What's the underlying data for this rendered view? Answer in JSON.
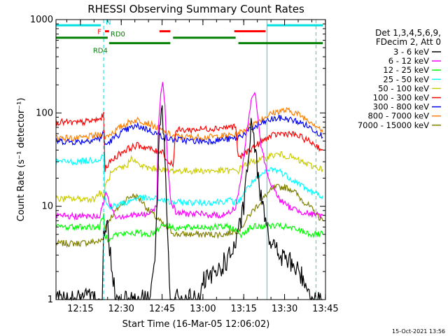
{
  "chart_data": {
    "type": "line",
    "title": "RHESSI Observing Summary Count Rates",
    "xlabel": "Start Time (16-Mar-05 12:06:02)",
    "ylabel": "Count Rate (s⁻¹ detector⁻¹)",
    "y_scale": "log",
    "ylim": [
      1,
      1000
    ],
    "xlim_minutes_after_start": [
      0,
      99
    ],
    "x_tick_labels": [
      "12:15",
      "12:30",
      "12:45",
      "13:00",
      "13:15",
      "13:30",
      "13:45"
    ],
    "x_tick_minutes": [
      8.97,
      23.97,
      38.97,
      53.97,
      68.97,
      83.97,
      98.97
    ],
    "y_tick_labels": [
      "1",
      "10",
      "100",
      "1000"
    ],
    "y_tick_values": [
      1,
      10,
      100,
      1000
    ],
    "grid": false,
    "legend_placement": "right",
    "legend_header": [
      "Det 1,3,4,5,6,9,",
      "FDecim 2, Att 0"
    ],
    "footer_timestamp": "15-Oct-2021 13:56",
    "vertical_markers_minutes": [
      {
        "x": 17.5,
        "color": "#00e0e0",
        "style": "dashed"
      },
      {
        "x": 77.5,
        "color": "#00e0e0",
        "style": "solid"
      },
      {
        "x": 95.5,
        "color": "#00e0e0",
        "style": "dashed"
      }
    ],
    "flag_bars": [
      {
        "label": "N",
        "label_color": "#00e0e0",
        "level": 870,
        "color": "#00e0e0",
        "segments": [
          [
            0,
            16.5
          ],
          [
            77.5,
            98
          ]
        ]
      },
      {
        "label": "F",
        "label_color": "#ff0000",
        "level": 750,
        "color": "#ff0000",
        "segments": [
          [
            18,
            19.5
          ],
          [
            38,
            42
          ],
          [
            65.5,
            77
          ]
        ]
      },
      {
        "label": "RD0",
        "label_color": "#008000",
        "level": 640,
        "color": "#008000",
        "segments": [
          [
            0,
            19
          ],
          [
            43,
            66
          ]
        ]
      },
      {
        "label": "RD4",
        "label_color": "#008000",
        "level": 560,
        "color": "#008000",
        "segments": [
          [
            19.5,
            42
          ],
          [
            67,
            98
          ]
        ]
      }
    ],
    "series": [
      {
        "name": "3 - 6 keV",
        "color": "#000000",
        "values": [
          [
            0,
            1
          ],
          [
            17,
            1
          ],
          [
            17.5,
            5
          ],
          [
            19,
            6
          ],
          [
            20,
            3
          ],
          [
            22,
            1
          ],
          [
            34,
            1
          ],
          [
            36,
            2
          ],
          [
            37,
            8
          ],
          [
            38,
            60
          ],
          [
            39,
            100
          ],
          [
            40,
            30
          ],
          [
            41,
            5
          ],
          [
            42,
            1
          ],
          [
            53,
            1
          ],
          [
            54,
            1.5
          ],
          [
            58,
            1.8
          ],
          [
            62,
            2.5
          ],
          [
            64,
            3
          ],
          [
            66,
            4
          ],
          [
            67,
            5
          ],
          [
            69,
            10
          ],
          [
            71,
            40
          ],
          [
            72,
            90
          ],
          [
            73,
            40
          ],
          [
            75,
            15
          ],
          [
            77,
            8
          ],
          [
            79,
            4
          ],
          [
            82,
            3
          ],
          [
            86,
            2.5
          ],
          [
            89,
            2
          ],
          [
            92,
            1.5
          ],
          [
            94,
            1
          ],
          [
            98,
            1
          ]
        ]
      },
      {
        "name": "6 - 12 keV",
        "color": "#ff00ff",
        "values": [
          [
            0,
            7.8
          ],
          [
            16,
            7.8
          ],
          [
            17.5,
            11
          ],
          [
            18,
            14
          ],
          [
            19,
            12
          ],
          [
            22,
            7.8
          ],
          [
            34,
            8.2
          ],
          [
            37,
            10
          ],
          [
            37.5,
            60
          ],
          [
            38.5,
            170
          ],
          [
            39.2,
            230
          ],
          [
            40,
            120
          ],
          [
            41,
            30
          ],
          [
            42,
            12
          ],
          [
            44,
            8.5
          ],
          [
            60,
            8
          ],
          [
            64,
            8.5
          ],
          [
            66,
            10
          ],
          [
            68,
            20
          ],
          [
            70,
            60
          ],
          [
            72,
            150
          ],
          [
            73,
            170
          ],
          [
            74,
            100
          ],
          [
            75,
            50
          ],
          [
            78,
            20
          ],
          [
            82,
            12
          ],
          [
            85,
            10
          ],
          [
            89,
            9
          ],
          [
            92,
            8.5
          ],
          [
            95,
            8
          ],
          [
            98,
            8
          ]
        ]
      },
      {
        "name": "12 - 25 keV",
        "color": "#00ff00",
        "values": [
          [
            0,
            6
          ],
          [
            16,
            6
          ],
          [
            17.5,
            8
          ],
          [
            18,
            5
          ],
          [
            19,
            4.5
          ],
          [
            22,
            5
          ],
          [
            30,
            5.2
          ],
          [
            34,
            5
          ],
          [
            36,
            5.2
          ],
          [
            38,
            6
          ],
          [
            40,
            6.5
          ],
          [
            42,
            6
          ],
          [
            46,
            5.8
          ],
          [
            52,
            6
          ],
          [
            60,
            6
          ],
          [
            64,
            6
          ],
          [
            66,
            5.5
          ],
          [
            68,
            5
          ],
          [
            72,
            6
          ],
          [
            78,
            6.2
          ],
          [
            84,
            6
          ],
          [
            90,
            5.5
          ],
          [
            94,
            5
          ],
          [
            98,
            5
          ]
        ]
      },
      {
        "name": "25 - 50 keV",
        "color": "#00ffff",
        "values": [
          [
            0,
            30
          ],
          [
            8,
            30
          ],
          [
            16,
            32
          ],
          [
            17.5,
            36
          ],
          [
            18,
            12
          ],
          [
            19,
            10
          ],
          [
            21,
            10
          ],
          [
            26,
            11
          ],
          [
            30,
            12.5
          ],
          [
            34,
            12
          ],
          [
            38,
            12
          ],
          [
            42,
            11
          ],
          [
            46,
            11
          ],
          [
            56,
            11
          ],
          [
            64,
            11.5
          ],
          [
            66,
            11
          ],
          [
            67,
            11
          ],
          [
            69,
            14
          ],
          [
            72,
            18
          ],
          [
            76,
            22
          ],
          [
            79,
            25
          ],
          [
            82,
            24
          ],
          [
            86,
            20
          ],
          [
            90,
            17
          ],
          [
            94,
            14
          ],
          [
            98,
            13
          ]
        ]
      },
      {
        "name": "50 - 100 keV",
        "color": "#cccc00",
        "values": [
          [
            0,
            12
          ],
          [
            14,
            12
          ],
          [
            16,
            14
          ],
          [
            17.5,
            12
          ],
          [
            18,
            16
          ],
          [
            20,
            22
          ],
          [
            23,
            25
          ],
          [
            26,
            27
          ],
          [
            28,
            34
          ],
          [
            30,
            28
          ],
          [
            33,
            26
          ],
          [
            36,
            25
          ],
          [
            38,
            26
          ],
          [
            40,
            24
          ],
          [
            42,
            24
          ],
          [
            46,
            24
          ],
          [
            58,
            24
          ],
          [
            64,
            24
          ],
          [
            66,
            24
          ],
          [
            67,
            24
          ],
          [
            69,
            28
          ],
          [
            72,
            30
          ],
          [
            76,
            32
          ],
          [
            79,
            35
          ],
          [
            82,
            36
          ],
          [
            86,
            34
          ],
          [
            90,
            30
          ],
          [
            94,
            27
          ],
          [
            98,
            25
          ]
        ]
      },
      {
        "name": "100 - 300 keV",
        "color": "#ff0000",
        "values": [
          [
            0,
            80
          ],
          [
            8,
            78
          ],
          [
            16,
            85
          ],
          [
            17.5,
            95
          ],
          [
            18,
            25
          ],
          [
            19,
            28
          ],
          [
            21,
            32
          ],
          [
            24,
            38
          ],
          [
            27,
            42
          ],
          [
            30,
            45
          ],
          [
            34,
            42
          ],
          [
            37,
            38
          ],
          [
            39,
            40
          ],
          [
            41,
            30
          ],
          [
            43,
            28
          ],
          [
            44,
            65
          ],
          [
            50,
            66
          ],
          [
            56,
            68
          ],
          [
            62,
            70
          ],
          [
            66,
            72
          ],
          [
            67,
            32
          ],
          [
            68,
            34
          ],
          [
            71,
            40
          ],
          [
            75,
            48
          ],
          [
            78,
            55
          ],
          [
            82,
            60
          ],
          [
            86,
            60
          ],
          [
            90,
            55
          ],
          [
            94,
            48
          ],
          [
            97,
            42
          ],
          [
            98,
            40
          ]
        ]
      },
      {
        "name": "300 - 800 keV",
        "color": "#0000ff",
        "values": [
          [
            0,
            50
          ],
          [
            8,
            49
          ],
          [
            16,
            53
          ],
          [
            17.5,
            60
          ],
          [
            18,
            45
          ],
          [
            20,
            50
          ],
          [
            22,
            56
          ],
          [
            25,
            64
          ],
          [
            28,
            70
          ],
          [
            30,
            72
          ],
          [
            33,
            68
          ],
          [
            36,
            62
          ],
          [
            38,
            58
          ],
          [
            40,
            55
          ],
          [
            42,
            52
          ],
          [
            44,
            52
          ],
          [
            50,
            50
          ],
          [
            56,
            50
          ],
          [
            62,
            52
          ],
          [
            66,
            53
          ],
          [
            67,
            55
          ],
          [
            70,
            62
          ],
          [
            73,
            70
          ],
          [
            76,
            78
          ],
          [
            79,
            85
          ],
          [
            82,
            88
          ],
          [
            85,
            86
          ],
          [
            88,
            82
          ],
          [
            91,
            76
          ],
          [
            94,
            68
          ],
          [
            97,
            60
          ],
          [
            98,
            55
          ]
        ]
      },
      {
        "name": "800 - 7000 keV",
        "color": "#ff8000",
        "values": [
          [
            0,
            55
          ],
          [
            8,
            53
          ],
          [
            16,
            58
          ],
          [
            17.5,
            65
          ],
          [
            18,
            55
          ],
          [
            20,
            60
          ],
          [
            22,
            65
          ],
          [
            25,
            75
          ],
          [
            28,
            82
          ],
          [
            30,
            84
          ],
          [
            33,
            80
          ],
          [
            36,
            72
          ],
          [
            38,
            67
          ],
          [
            40,
            62
          ],
          [
            42,
            58
          ],
          [
            44,
            56
          ],
          [
            50,
            55
          ],
          [
            56,
            55
          ],
          [
            62,
            57
          ],
          [
            66,
            58
          ],
          [
            67,
            60
          ],
          [
            70,
            68
          ],
          [
            73,
            78
          ],
          [
            76,
            88
          ],
          [
            79,
            98
          ],
          [
            82,
            105
          ],
          [
            85,
            106
          ],
          [
            88,
            100
          ],
          [
            91,
            90
          ],
          [
            94,
            80
          ],
          [
            97,
            68
          ],
          [
            98,
            62
          ]
        ]
      },
      {
        "name": "7000 - 15000 keV",
        "color": "#808000",
        "values": [
          [
            0,
            4
          ],
          [
            8,
            4
          ],
          [
            16,
            4.2
          ],
          [
            17.5,
            4.5
          ],
          [
            18,
            6
          ],
          [
            20,
            7.5
          ],
          [
            22,
            9
          ],
          [
            24,
            10.5
          ],
          [
            26,
            12
          ],
          [
            28,
            13
          ],
          [
            30,
            12.5
          ],
          [
            32,
            11
          ],
          [
            34,
            9
          ],
          [
            36,
            8
          ],
          [
            38,
            7
          ],
          [
            40,
            6
          ],
          [
            42,
            5.5
          ],
          [
            44,
            5
          ],
          [
            50,
            5
          ],
          [
            56,
            5
          ],
          [
            62,
            5
          ],
          [
            66,
            5.5
          ],
          [
            67,
            5.5
          ],
          [
            69,
            6.5
          ],
          [
            71,
            8
          ],
          [
            73,
            9.5
          ],
          [
            75,
            11
          ],
          [
            78,
            14
          ],
          [
            81,
            16
          ],
          [
            84,
            16
          ],
          [
            87,
            15
          ],
          [
            90,
            12
          ],
          [
            93,
            10
          ],
          [
            96,
            8
          ],
          [
            98,
            7
          ]
        ]
      }
    ]
  }
}
